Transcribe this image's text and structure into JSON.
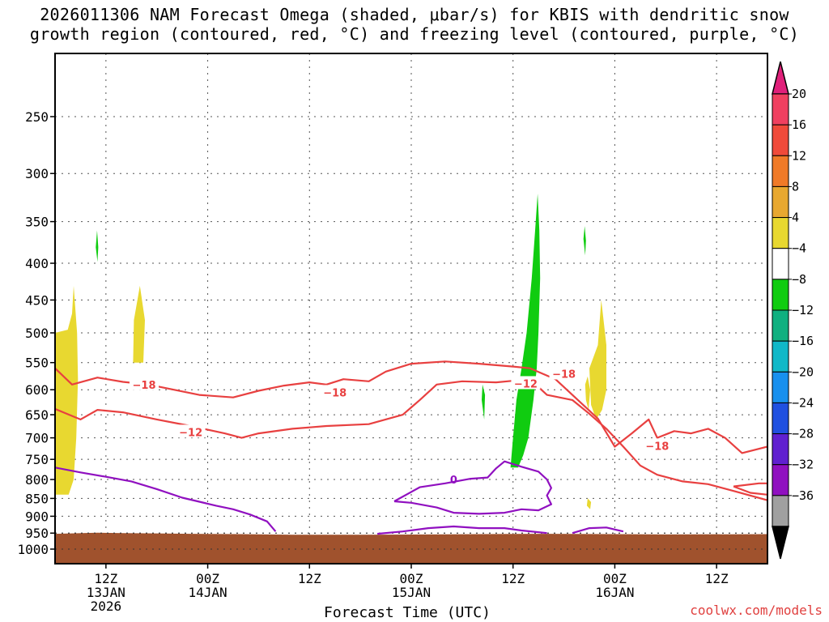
{
  "title_lines": [
    "2026011306 NAM Forecast Omega (shaded, μbar/s) for KBIS with dendritic snow",
    "growth region (contoured, red, °C) and freezing level (contoured, purple, °C)"
  ],
  "credit": "coolwx.com/models",
  "chart_data": {
    "type": "time-height cross section",
    "xlabel": "Forecast Time (UTC)",
    "ylabel": "",
    "y_axis": {
      "scale": "pressure (reversed)",
      "range": [
        1000,
        200
      ],
      "ticks": [
        250,
        300,
        350,
        400,
        450,
        500,
        550,
        600,
        650,
        700,
        750,
        800,
        850,
        900,
        950,
        1000
      ]
    },
    "x_axis": {
      "range_hours": [
        0,
        84
      ],
      "ticks": [
        {
          "hour": 6,
          "lines": [
            "12Z",
            "13JAN",
            "2026"
          ]
        },
        {
          "hour": 18,
          "lines": [
            "00Z",
            "14JAN"
          ]
        },
        {
          "hour": 30,
          "lines": [
            "12Z"
          ]
        },
        {
          "hour": 42,
          "lines": [
            "00Z",
            "15JAN"
          ]
        },
        {
          "hour": 54,
          "lines": [
            "12Z"
          ]
        },
        {
          "hour": 66,
          "lines": [
            "00Z",
            "16JAN"
          ]
        },
        {
          "hour": 78,
          "lines": [
            "12Z"
          ]
        }
      ]
    },
    "grid": true,
    "colorbar": {
      "labels": [
        "20",
        "16",
        "12",
        "8",
        "4",
        "−4",
        "−8",
        "−12",
        "−16",
        "−20",
        "−24",
        "−28",
        "−32",
        "−36"
      ],
      "colors": [
        "#f04060",
        "#f04a3a",
        "#f07a28",
        "#e8a830",
        "#e8d830",
        "#ffffff",
        "#10cc10",
        "#10b080",
        "#10b8c8",
        "#1890ee",
        "#2050e0",
        "#6020d0",
        "#9010c0",
        "#a0a0a0"
      ],
      "top_color": "#e0207a",
      "bottom_color": "#000000"
    },
    "contours": {
      "dgz_minus18": {
        "color": "#e84040",
        "label": "−18",
        "points": [
          [
            0,
            560
          ],
          [
            2,
            590
          ],
          [
            5,
            577
          ],
          [
            8,
            585
          ],
          [
            11,
            590
          ],
          [
            14,
            600
          ],
          [
            17,
            610
          ],
          [
            21,
            615
          ],
          [
            24,
            602
          ],
          [
            27,
            592
          ],
          [
            30,
            586
          ],
          [
            32,
            590
          ],
          [
            34,
            580
          ],
          [
            37,
            584
          ],
          [
            39,
            566
          ],
          [
            42,
            552
          ],
          [
            46,
            548
          ],
          [
            50,
            552
          ],
          [
            54,
            557
          ],
          [
            56,
            560
          ],
          [
            59,
            580
          ],
          [
            61,
            610
          ],
          [
            64,
            658
          ],
          [
            66,
            720
          ],
          [
            68,
            690
          ],
          [
            70,
            660
          ],
          [
            71,
            700
          ],
          [
            73,
            685
          ],
          [
            75,
            690
          ],
          [
            77,
            680
          ],
          [
            79,
            700
          ],
          [
            81,
            735
          ],
          [
            84,
            720
          ]
        ],
        "labels_at": [
          [
            10.5,
            590
          ],
          [
            33,
            605
          ],
          [
            60,
            570
          ],
          [
            71,
            718
          ]
        ]
      },
      "dgz_minus12": {
        "color": "#e84040",
        "label": "−12",
        "points": [
          [
            0,
            638
          ],
          [
            3,
            660
          ],
          [
            5,
            640
          ],
          [
            8,
            645
          ],
          [
            12,
            660
          ],
          [
            16,
            674
          ],
          [
            20,
            690
          ],
          [
            22,
            700
          ],
          [
            24,
            690
          ],
          [
            28,
            680
          ],
          [
            32,
            674
          ],
          [
            37,
            670
          ],
          [
            41,
            650
          ],
          [
            43,
            620
          ],
          [
            45,
            590
          ],
          [
            48,
            584
          ],
          [
            52,
            586
          ],
          [
            56,
            580
          ],
          [
            58,
            610
          ],
          [
            61,
            620
          ],
          [
            63,
            648
          ],
          [
            65,
            680
          ],
          [
            67,
            720
          ],
          [
            69,
            765
          ],
          [
            71,
            788
          ],
          [
            74,
            805
          ],
          [
            77,
            812
          ],
          [
            80,
            830
          ],
          [
            84,
            855
          ]
        ],
        "labels_at": [
          [
            16,
            687
          ],
          [
            55.5,
            588
          ]
        ]
      },
      "dgz_right_loop": {
        "color": "#e84040",
        "points": [
          [
            80,
            818
          ],
          [
            83,
            810
          ],
          [
            84,
            810
          ],
          [
            84,
            840
          ],
          [
            82,
            835
          ],
          [
            80,
            818
          ]
        ]
      },
      "freezing_main": {
        "color": "#9010c0",
        "label": "0",
        "points": [
          [
            0,
            770
          ],
          [
            3,
            782
          ],
          [
            6,
            793
          ],
          [
            9,
            805
          ],
          [
            12,
            825
          ],
          [
            15,
            848
          ],
          [
            19,
            870
          ],
          [
            21,
            880
          ],
          [
            23,
            895
          ],
          [
            25,
            915
          ],
          [
            26,
            945
          ]
        ],
        "labels_at": [
          [
            47,
            800
          ]
        ]
      },
      "freezing_loop": {
        "color": "#9010c0",
        "points": [
          [
            40,
            858
          ],
          [
            43,
            820
          ],
          [
            46,
            810
          ],
          [
            49,
            798
          ],
          [
            51,
            795
          ],
          [
            52,
            772
          ],
          [
            53,
            755
          ],
          [
            55,
            768
          ],
          [
            57,
            780
          ],
          [
            58,
            800
          ],
          [
            58.5,
            822
          ],
          [
            58,
            842
          ],
          [
            58.5,
            866
          ],
          [
            57,
            883
          ],
          [
            55,
            880
          ],
          [
            53,
            890
          ],
          [
            50,
            893
          ],
          [
            47,
            890
          ],
          [
            45,
            875
          ],
          [
            42,
            862
          ],
          [
            40,
            858
          ]
        ]
      },
      "freezing_bottom": {
        "color": "#9010c0",
        "points": [
          [
            38,
            952
          ],
          [
            41,
            945
          ],
          [
            44,
            935
          ],
          [
            47,
            930
          ],
          [
            50,
            935
          ],
          [
            53,
            935
          ],
          [
            55,
            942
          ],
          [
            58,
            950
          ]
        ]
      },
      "freezing_bottom2": {
        "color": "#9010c0",
        "points": [
          [
            61,
            950
          ],
          [
            63,
            935
          ],
          [
            65,
            933
          ],
          [
            67,
            945
          ]
        ]
      }
    },
    "shaded_regions": [
      {
        "name": "omega-positive-left",
        "color": "#e8d830",
        "points": [
          [
            0,
            500
          ],
          [
            1.5,
            495
          ],
          [
            2,
            470
          ],
          [
            2.2,
            430
          ],
          [
            2.6,
            500
          ],
          [
            2.7,
            580
          ],
          [
            2.5,
            700
          ],
          [
            2.2,
            800
          ],
          [
            1.6,
            840
          ],
          [
            0,
            840
          ]
        ]
      },
      {
        "name": "omega-positive-mid",
        "color": "#e8d830",
        "points": [
          [
            9.2,
            550
          ],
          [
            9.3,
            480
          ],
          [
            10,
            430
          ],
          [
            10.6,
            480
          ],
          [
            10.4,
            550
          ]
        ]
      },
      {
        "name": "omega-positive-right",
        "color": "#e8d830",
        "points": [
          [
            63,
            560
          ],
          [
            64,
            520
          ],
          [
            64.4,
            450
          ],
          [
            65,
            520
          ],
          [
            65,
            600
          ],
          [
            64.5,
            640
          ],
          [
            63.8,
            660
          ],
          [
            63.2,
            630
          ]
        ]
      },
      {
        "name": "omega-positive-small-1",
        "color": "#e8d830",
        "points": [
          [
            62.5,
            590
          ],
          [
            62.8,
            575
          ],
          [
            63.1,
            600
          ],
          [
            62.9,
            640
          ],
          [
            62.6,
            620
          ]
        ]
      },
      {
        "name": "omega-positive-small-2",
        "color": "#e8d830",
        "points": [
          [
            62.7,
            870
          ],
          [
            62.8,
            850
          ],
          [
            63.2,
            860
          ],
          [
            63.1,
            880
          ]
        ]
      },
      {
        "name": "omega-negative-main",
        "color": "#10cc10",
        "points": [
          [
            53.7,
            770
          ],
          [
            54,
            700
          ],
          [
            54.4,
            620
          ],
          [
            55,
            560
          ],
          [
            55.6,
            500
          ],
          [
            56.2,
            420
          ],
          [
            56.6,
            360
          ],
          [
            56.9,
            320
          ],
          [
            57.1,
            360
          ],
          [
            57.2,
            420
          ],
          [
            57,
            500
          ],
          [
            56.8,
            560
          ],
          [
            56.4,
            620
          ],
          [
            55.8,
            700
          ],
          [
            55.2,
            740
          ],
          [
            54.6,
            770
          ]
        ]
      },
      {
        "name": "omega-negative-small-1",
        "color": "#10cc10",
        "points": [
          [
            4.8,
            380
          ],
          [
            4.95,
            360
          ],
          [
            5.1,
            380
          ],
          [
            5,
            398
          ]
        ]
      },
      {
        "name": "omega-negative-small-2",
        "color": "#10cc10",
        "points": [
          [
            62.3,
            370
          ],
          [
            62.45,
            355
          ],
          [
            62.6,
            372
          ],
          [
            62.5,
            390
          ]
        ]
      },
      {
        "name": "omega-negative-small-3",
        "color": "#10cc10",
        "points": [
          [
            50.3,
            620
          ],
          [
            50.4,
            590
          ],
          [
            50.7,
            610
          ],
          [
            50.6,
            660
          ]
        ]
      }
    ],
    "terrain": {
      "color": "#a0522d",
      "top_pressure": [
        [
          0,
          952
        ],
        [
          5,
          949
        ],
        [
          8,
          950
        ],
        [
          12,
          951
        ],
        [
          16,
          952
        ],
        [
          22,
          953
        ],
        [
          28,
          955
        ],
        [
          36,
          955
        ],
        [
          44,
          954
        ],
        [
          50,
          953
        ],
        [
          58,
          952
        ],
        [
          66,
          953
        ],
        [
          72,
          954
        ],
        [
          84,
          953
        ]
      ]
    }
  }
}
